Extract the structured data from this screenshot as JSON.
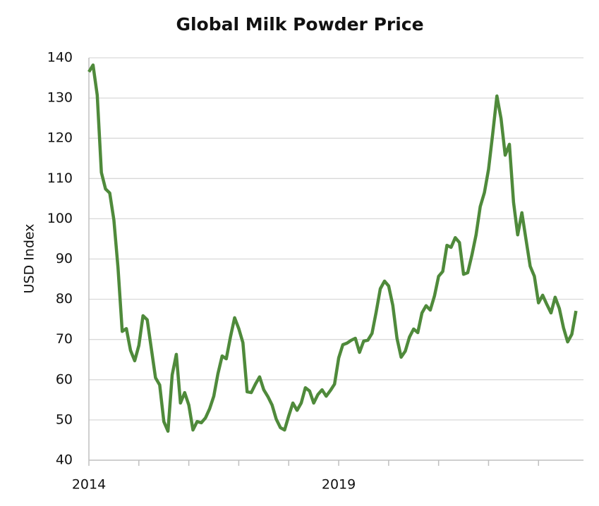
{
  "chart_data": {
    "type": "line",
    "title": "Global Milk Powder Price",
    "y_label": "USD Index",
    "x": [
      2014,
      2014.083,
      2014.167,
      2014.25,
      2014.333,
      2014.417,
      2014.5,
      2014.583,
      2014.667,
      2014.75,
      2014.833,
      2014.917,
      2015,
      2015.083,
      2015.167,
      2015.25,
      2015.333,
      2015.417,
      2015.5,
      2015.583,
      2015.667,
      2015.75,
      2015.833,
      2015.917,
      2016,
      2016.083,
      2016.167,
      2016.25,
      2016.333,
      2016.417,
      2016.5,
      2016.583,
      2016.667,
      2016.75,
      2016.833,
      2016.917,
      2017,
      2017.083,
      2017.167,
      2017.25,
      2017.333,
      2017.417,
      2017.5,
      2017.583,
      2017.667,
      2017.75,
      2017.833,
      2017.917,
      2018,
      2018.083,
      2018.167,
      2018.25,
      2018.333,
      2018.417,
      2018.5,
      2018.583,
      2018.667,
      2018.75,
      2018.833,
      2018.917,
      2019,
      2019.083,
      2019.167,
      2019.25,
      2019.333,
      2019.417,
      2019.5,
      2019.583,
      2019.667,
      2019.75,
      2019.833,
      2019.917,
      2020,
      2020.083,
      2020.167,
      2020.25,
      2020.333,
      2020.417,
      2020.5,
      2020.583,
      2020.667,
      2020.75,
      2020.833,
      2020.917,
      2021,
      2021.083,
      2021.167,
      2021.25,
      2021.333,
      2021.417,
      2021.5,
      2021.583,
      2021.667,
      2021.75,
      2021.833,
      2021.917,
      2022,
      2022.083,
      2022.167,
      2022.25,
      2022.333,
      2022.417,
      2022.5,
      2022.583,
      2022.667,
      2022.75,
      2022.833,
      2022.917,
      2023,
      2023.083,
      2023.167,
      2023.25,
      2023.333,
      2023.417,
      2023.5,
      2023.583,
      2023.667,
      2023.75
    ],
    "series": [
      {
        "color": "#4f8a3b",
        "values": [
          136.5,
          138.2,
          130.7,
          111.5,
          107.4,
          106.4,
          99.7,
          87.8,
          72.0,
          72.7,
          67.3,
          64.7,
          68.5,
          75.9,
          74.9,
          67.7,
          60.5,
          58.7,
          49.6,
          47.2,
          61.2,
          66.3,
          54.2,
          56.8,
          53.7,
          47.5,
          49.6,
          49.3,
          50.5,
          52.8,
          55.9,
          61.5,
          65.9,
          65.2,
          70.6,
          75.4,
          72.7,
          69.2,
          57.0,
          56.8,
          58.9,
          60.7,
          57.5,
          55.8,
          53.7,
          50.2,
          48.1,
          47.5,
          51.0,
          54.2,
          52.4,
          54.2,
          58.0,
          57.2,
          54.2,
          56.3,
          57.5,
          55.9,
          57.3,
          58.9,
          65.4,
          68.7,
          69.1,
          69.8,
          70.3,
          66.8,
          69.6,
          69.8,
          71.5,
          76.8,
          82.6,
          84.5,
          83.3,
          78.5,
          70.3,
          65.6,
          67.1,
          70.6,
          72.6,
          71.7,
          76.6,
          78.4,
          77.3,
          80.8,
          85.7,
          86.9,
          93.4,
          92.9,
          95.3,
          94.1,
          86.2,
          86.6,
          91.0,
          96.0,
          103.0,
          106.5,
          112.3,
          121.1,
          130.5,
          124.9,
          115.8,
          118.5,
          104.1,
          96.0,
          101.5,
          94.8,
          88.2,
          85.7,
          79.1,
          81.0,
          78.7,
          76.6,
          80.5,
          77.7,
          72.9,
          69.4,
          71.3,
          77.1
        ]
      }
    ],
    "xlim": [
      2014,
      2023.9
    ],
    "xticks": [
      2014,
      2019
    ],
    "xminorticks": [
      2015,
      2016,
      2017,
      2018,
      2020,
      2021,
      2022,
      2023
    ],
    "ylim": [
      40,
      140
    ],
    "yticks": [
      40,
      50,
      60,
      70,
      80,
      90,
      100,
      110,
      120,
      130,
      140
    ],
    "grid": true
  }
}
